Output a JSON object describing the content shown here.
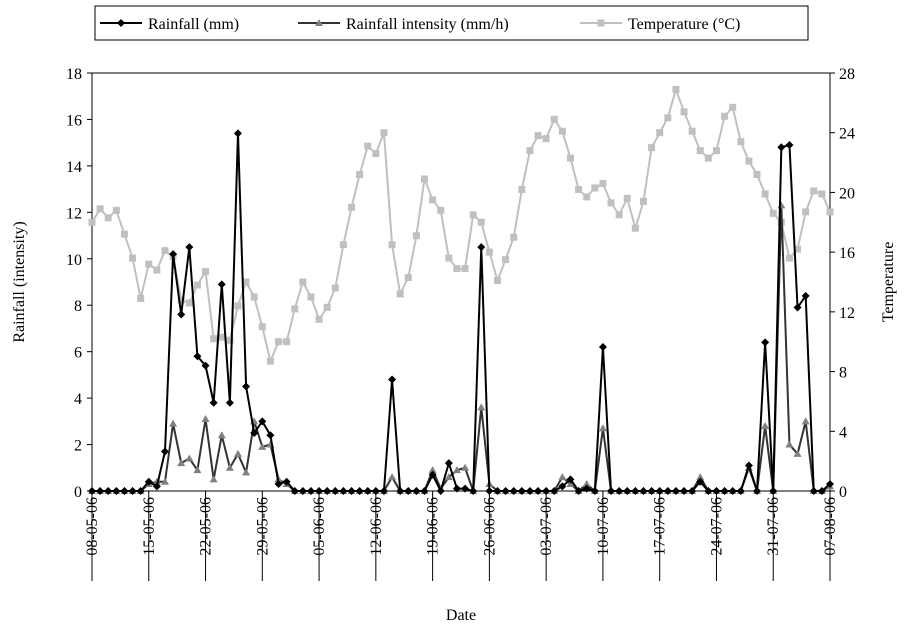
{
  "chart_data": {
    "type": "line",
    "x_label": "Date",
    "y_label": "Rainfall (intensity)",
    "y2_label": "Temperature",
    "categories": [
      "08-05-06",
      null,
      null,
      null,
      null,
      null,
      null,
      "15-05-06",
      null,
      null,
      null,
      null,
      null,
      null,
      "22-05-06",
      null,
      null,
      null,
      null,
      null,
      null,
      "29-05-06",
      null,
      null,
      null,
      null,
      null,
      null,
      "05-06-06",
      null,
      null,
      null,
      null,
      null,
      null,
      "12-06-06",
      null,
      null,
      null,
      null,
      null,
      null,
      "19-06-06",
      null,
      null,
      null,
      null,
      null,
      null,
      "26-06-06",
      null,
      null,
      null,
      null,
      null,
      null,
      "03-07-06",
      null,
      null,
      null,
      null,
      null,
      null,
      "10-07-06",
      null,
      null,
      null,
      null,
      null,
      null,
      "17-07-06",
      null,
      null,
      null,
      null,
      null,
      null,
      "24-07-06",
      null,
      null,
      null,
      null,
      null,
      null,
      "31-07-06",
      null,
      null,
      null,
      null,
      null,
      null,
      "07-08-06"
    ],
    "series": [
      {
        "name": "Rainfall (mm)",
        "color": "#000000",
        "marker": "diamond",
        "values": [
          0,
          0,
          0,
          0,
          0,
          0,
          0,
          0.4,
          0.2,
          1.7,
          10.2,
          7.6,
          10.5,
          5.8,
          5.4,
          3.8,
          8.9,
          3.8,
          15.4,
          4.5,
          2.5,
          3.0,
          2.4,
          0.3,
          0.4,
          0,
          0,
          0,
          0,
          0,
          0,
          0,
          0,
          0,
          0,
          0,
          0,
          4.8,
          0,
          0,
          0,
          0,
          0.7,
          0,
          1.2,
          0.1,
          0.1,
          0,
          10.5,
          0,
          0,
          0,
          0,
          0,
          0,
          0,
          0,
          0,
          0.2,
          0.5,
          0,
          0.1,
          0,
          6.2,
          0,
          0,
          0,
          0,
          0,
          0,
          0,
          0,
          0,
          0,
          0,
          0.4,
          0,
          0,
          0,
          0,
          0,
          1.1,
          0,
          6.4,
          0,
          14.8,
          14.9,
          7.9,
          8.4,
          0,
          0,
          0.3
        ]
      },
      {
        "name": "Rainfall intensity (mm/h)",
        "color": "#333333",
        "marker_color": "#808080",
        "marker": "triangle",
        "values": [
          0,
          0,
          0,
          0,
          0,
          0,
          0,
          0.3,
          0.4,
          0.4,
          2.9,
          1.2,
          1.4,
          0.9,
          3.1,
          0.5,
          2.4,
          1.0,
          1.6,
          0.8,
          3.0,
          1.9,
          2.0,
          0.5,
          0.3,
          0,
          0,
          0,
          0,
          0,
          0,
          0,
          0,
          0,
          0,
          0,
          0,
          0.6,
          0,
          0,
          0,
          0,
          0.9,
          0.1,
          0.6,
          0.9,
          1.0,
          0,
          3.6,
          0.3,
          0,
          0,
          0,
          0,
          0,
          0,
          0,
          0,
          0.6,
          0.3,
          0,
          0.3,
          0,
          2.7,
          0,
          0,
          0,
          0,
          0,
          0,
          0,
          0,
          0,
          0,
          0,
          0.6,
          0,
          0,
          0,
          0,
          0,
          1.0,
          0,
          2.8,
          0,
          12.3,
          2.0,
          1.6,
          3.0,
          0,
          0,
          0.2
        ]
      },
      {
        "name": "Temperature (°C)",
        "color": "#c0c0c0",
        "marker": "square",
        "axis": "y2",
        "values": [
          18.0,
          18.9,
          18.3,
          18.8,
          17.2,
          15.6,
          12.9,
          15.2,
          14.8,
          16.1,
          15.7,
          12.8,
          12.6,
          13.8,
          14.7,
          10.2,
          10.3,
          10.1,
          12.4,
          14.0,
          13.0,
          11.0,
          8.7,
          10.0,
          10.0,
          12.2,
          14.0,
          13.0,
          11.5,
          12.3,
          13.6,
          16.5,
          19.0,
          21.2,
          23.1,
          22.6,
          24.0,
          16.5,
          13.2,
          14.3,
          17.1,
          20.9,
          19.5,
          18.8,
          15.6,
          14.9,
          14.9,
          18.5,
          18.0,
          16.0,
          14.1,
          15.5,
          17.0,
          20.2,
          22.8,
          23.8,
          23.6,
          24.9,
          24.1,
          22.3,
          20.2,
          19.7,
          20.3,
          20.6,
          19.3,
          18.5,
          19.6,
          17.6,
          19.4,
          23.0,
          24.0,
          25.0,
          26.9,
          25.4,
          24.1,
          22.8,
          22.3,
          22.8,
          25.1,
          25.7,
          23.4,
          22.1,
          21.2,
          19.9,
          18.6,
          18.0,
          15.6,
          16.2,
          18.7,
          20.1,
          19.9,
          18.7
        ]
      }
    ],
    "ylim": [
      0,
      18
    ],
    "yticks": [
      0,
      2,
      4,
      6,
      8,
      10,
      12,
      14,
      16,
      18
    ],
    "y2lim": [
      0,
      28
    ],
    "y2ticks": [
      0,
      4,
      8,
      12,
      16,
      20,
      24,
      28
    ],
    "legend": "top"
  }
}
